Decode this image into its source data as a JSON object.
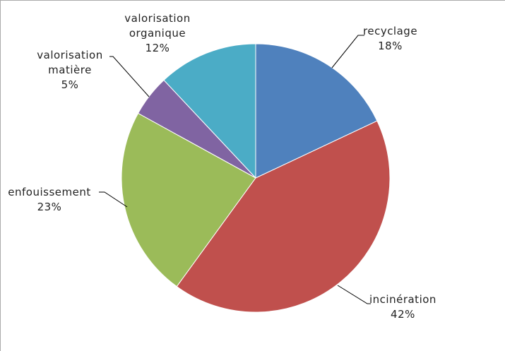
{
  "chart_data": {
    "type": "pie",
    "categories": [
      "recyclage",
      "incinération",
      "enfouissement",
      "valorisation matière",
      "valorisation organique"
    ],
    "values": [
      18,
      42,
      23,
      5,
      12
    ],
    "value_labels": [
      "18%",
      "42%",
      "23%",
      "5%",
      "12%"
    ],
    "colors": [
      "#4f81bd",
      "#c0504d",
      "#9bbb59",
      "#8064a2",
      "#4bacc6"
    ]
  }
}
